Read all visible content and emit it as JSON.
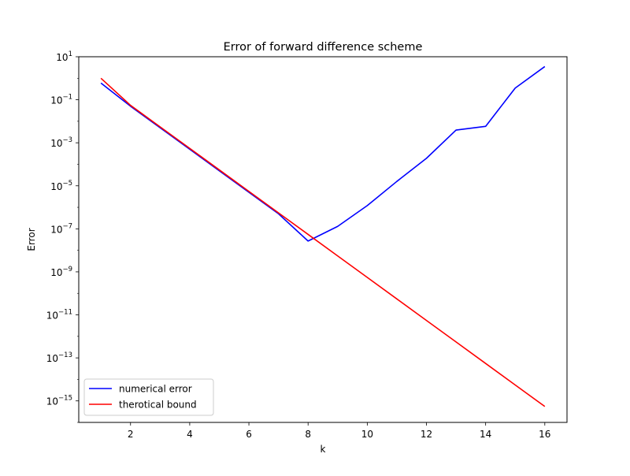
{
  "chart_data": {
    "type": "line",
    "title": "Error of forward difference scheme",
    "xlabel": "k",
    "ylabel": "Error",
    "xlim": [
      0.25,
      16.75
    ],
    "xticks": [
      2,
      4,
      6,
      8,
      10,
      12,
      14,
      16
    ],
    "yscale": "log",
    "ylim": [
      1e-16,
      10
    ],
    "yticks": [
      {
        "value": 10.0,
        "mantissa": "10",
        "exp": "1"
      },
      {
        "value": 0.1,
        "mantissa": "10",
        "exp": "−1"
      },
      {
        "value": 0.001,
        "mantissa": "10",
        "exp": "−3"
      },
      {
        "value": 1e-05,
        "mantissa": "10",
        "exp": "−5"
      },
      {
        "value": 1e-07,
        "mantissa": "10",
        "exp": "−7"
      },
      {
        "value": 1e-09,
        "mantissa": "10",
        "exp": "−9"
      },
      {
        "value": 1e-11,
        "mantissa": "10",
        "exp": "−11"
      },
      {
        "value": 1e-13,
        "mantissa": "10",
        "exp": "−13"
      },
      {
        "value": 1e-15,
        "mantissa": "10",
        "exp": "−15"
      }
    ],
    "grid": false,
    "legend_position": "lower-left",
    "series": [
      {
        "name": "numerical error",
        "color": "#0000ff",
        "x": [
          1,
          2,
          3,
          4,
          5,
          6,
          7,
          8,
          9,
          10,
          11,
          12,
          13,
          14,
          15,
          16
        ],
        "y": [
          0.6,
          0.05,
          0.005,
          0.0005,
          5e-05,
          5e-06,
          5e-07,
          2.7e-08,
          1.3e-07,
          1.2e-06,
          1.6e-05,
          0.00019,
          0.0039,
          0.0058,
          0.35,
          3.5
        ]
      },
      {
        "name": "therotical bound",
        "color": "#ff0000",
        "x": [
          1,
          2,
          3,
          4,
          5,
          6,
          7,
          8,
          9,
          10,
          11,
          12,
          13,
          14,
          15,
          16
        ],
        "y": [
          1.0,
          0.055,
          0.0055,
          0.00055,
          5.5e-05,
          5.5e-06,
          5.5e-07,
          5.5e-08,
          5.5e-09,
          5.5e-10,
          5.5e-11,
          5.5e-12,
          5.5e-13,
          5.5e-14,
          5.5e-15,
          5.5e-16
        ]
      }
    ]
  }
}
